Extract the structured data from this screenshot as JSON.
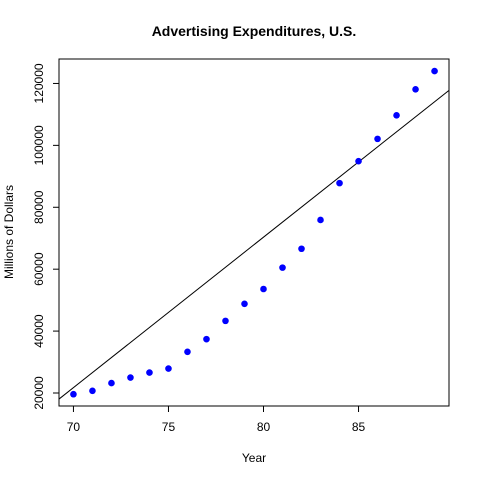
{
  "chart_data": {
    "type": "scatter",
    "title": "Advertising Expenditures, U.S.",
    "xlabel": "Year",
    "ylabel": "Millions of Dollars",
    "xlim": [
      69.24,
      89.76
    ],
    "ylim": [
      15800,
      127900
    ],
    "x_ticks": [
      70,
      75,
      80,
      85
    ],
    "y_ticks": [
      20000,
      40000,
      60000,
      80000,
      100000,
      120000
    ],
    "grid": false,
    "legend": "none",
    "point_color": "#0000ff",
    "line_color": "#000000",
    "series": [
      {
        "x": [
          70,
          71,
          72,
          73,
          74,
          75,
          76,
          77,
          78,
          79,
          80,
          81,
          82,
          83,
          84,
          85,
          86,
          87,
          88,
          89
        ],
        "y": [
          19600,
          20700,
          23200,
          25000,
          26600,
          27900,
          33300,
          37400,
          43300,
          48800,
          53600,
          60500,
          66600,
          75900,
          87800,
          94900,
          102100,
          109700,
          118100,
          124000
        ]
      }
    ],
    "fit_line": {
      "intercept": -318460,
      "slope": 4860
    }
  }
}
